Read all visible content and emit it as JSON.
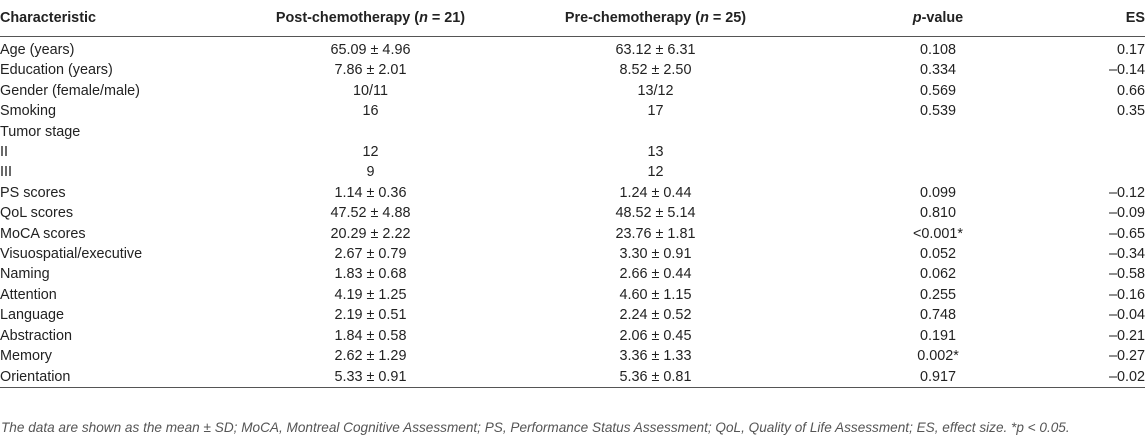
{
  "header": {
    "characteristic": "Characteristic",
    "post": {
      "prefix": "Post-chemotherapy (",
      "n_var": "n",
      "suffix": " = 21)"
    },
    "pre": {
      "prefix": "Pre-chemotherapy (",
      "n_var": "n",
      "suffix": " = 25)"
    },
    "p": {
      "var": "p",
      "suffix": "-value"
    },
    "es": "ES"
  },
  "rows": [
    {
      "label": "Age (years)",
      "post": "65.09 ± 4.96",
      "pre": "63.12 ± 6.31",
      "p": "0.108",
      "es": "0.17",
      "indent": false
    },
    {
      "label": "Education (years)",
      "post": "7.86 ± 2.01",
      "pre": "8.52 ± 2.50",
      "p": "0.334",
      "es": "–0.14",
      "indent": false
    },
    {
      "label": "Gender (female/male)",
      "post": "10/11",
      "pre": "13/12",
      "p": "0.569",
      "es": "0.66",
      "indent": false
    },
    {
      "label": "Smoking",
      "post": "16",
      "pre": "17",
      "p": "0.539",
      "es": "0.35",
      "indent": false
    },
    {
      "label": "Tumor stage",
      "post": "",
      "pre": "",
      "p": "",
      "es": "",
      "indent": false
    },
    {
      "label": "II",
      "post": "12",
      "pre": "13",
      "p": "",
      "es": "",
      "indent": true
    },
    {
      "label": "III",
      "post": "9",
      "pre": "12",
      "p": "",
      "es": "",
      "indent": true
    },
    {
      "label": "PS scores",
      "post": "1.14 ± 0.36",
      "pre": "1.24 ± 0.44",
      "p": "0.099",
      "es": "–0.12",
      "indent": false
    },
    {
      "label": "QoL scores",
      "post": "47.52 ± 4.88",
      "pre": "48.52 ± 5.14",
      "p": "0.810",
      "es": "–0.09",
      "indent": false
    },
    {
      "label": "MoCA scores",
      "post": "20.29 ± 2.22",
      "pre": "23.76 ± 1.81",
      "p": "<0.001*",
      "es": "–0.65",
      "indent": false
    },
    {
      "label": "Visuospatial/executive",
      "post": "2.67 ± 0.79",
      "pre": "3.30 ± 0.91",
      "p": "0.052",
      "es": "–0.34",
      "indent": false
    },
    {
      "label": "Naming",
      "post": "1.83 ± 0.68",
      "pre": "2.66 ± 0.44",
      "p": "0.062",
      "es": "–0.58",
      "indent": false
    },
    {
      "label": "Attention",
      "post": "4.19 ± 1.25",
      "pre": "4.60 ± 1.15",
      "p": "0.255",
      "es": "–0.16",
      "indent": false
    },
    {
      "label": "Language",
      "post": "2.19 ± 0.51",
      "pre": "2.24 ± 0.52",
      "p": "0.748",
      "es": "–0.04",
      "indent": false
    },
    {
      "label": "Abstraction",
      "post": "1.84 ± 0.58",
      "pre": "2.06 ± 0.45",
      "p": "0.191",
      "es": "–0.21",
      "indent": false
    },
    {
      "label": "Memory",
      "post": "2.62 ± 1.29",
      "pre": "3.36 ± 1.33",
      "p": "0.002*",
      "es": "–0.27",
      "indent": false
    },
    {
      "label": "Orientation",
      "post": "5.33 ± 0.91",
      "pre": "5.36 ± 0.81",
      "p": "0.917",
      "es": "–0.02",
      "indent": false
    }
  ],
  "footnote": "The data are shown as the mean ± SD; MoCA, Montreal Cognitive Assessment; PS, Performance Status Assessment; QoL, Quality of Life Assessment; ES, effect size. *p < 0.05."
}
